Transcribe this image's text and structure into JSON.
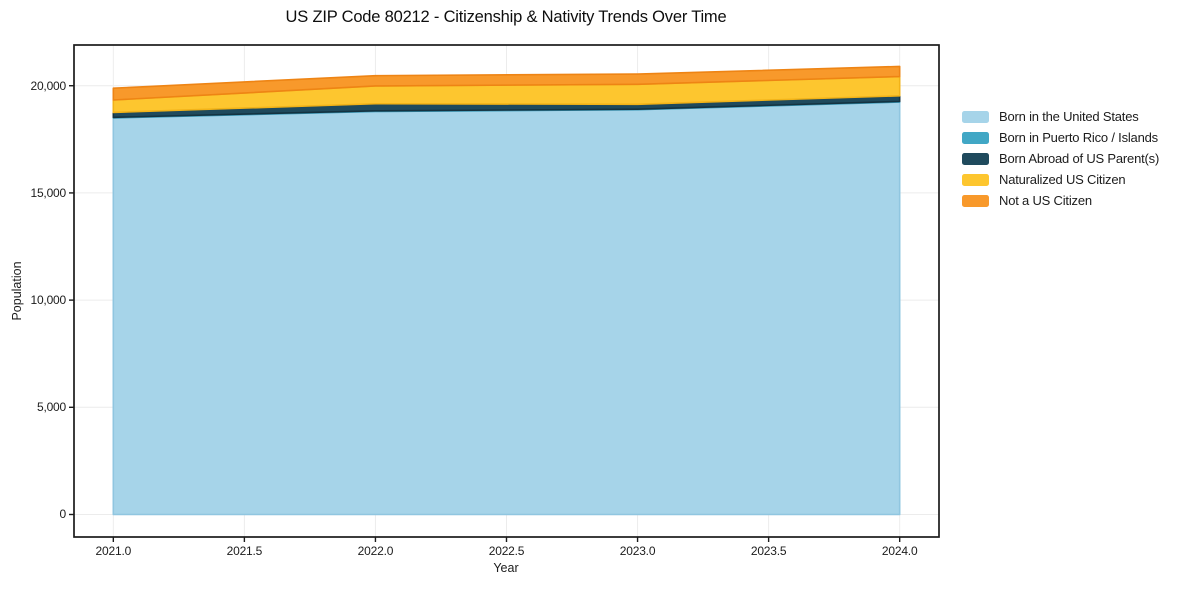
{
  "chart_data": {
    "type": "area",
    "stacked": true,
    "title": "US ZIP Code 80212 - Citizenship & Nativity Trends Over Time",
    "xlabel": "Year",
    "ylabel": "Population",
    "x": [
      2021,
      2022,
      2023,
      2024
    ],
    "series": [
      {
        "name": "Born in the United States",
        "color": "#a6d4e9",
        "edge_color": "#90c6e0",
        "values": [
          18500,
          18800,
          18880,
          19240
        ]
      },
      {
        "name": "Born in Puerto Rico / Islands",
        "color": "#41a7c5",
        "edge_color": "#3697b6",
        "values": [
          25,
          30,
          25,
          30
        ]
      },
      {
        "name": "Born Abroad of US Parent(s)",
        "color": "#1f4a5d",
        "edge_color": "#143341",
        "values": [
          230,
          330,
          230,
          260
        ]
      },
      {
        "name": "Naturalized US Citizen",
        "color": "#fdc62f",
        "edge_color": "#f2b318",
        "values": [
          580,
          830,
          930,
          900
        ]
      },
      {
        "name": "Not a US Citizen",
        "color": "#f8992b",
        "edge_color": "#ee8414",
        "values": [
          550,
          480,
          480,
          470
        ]
      }
    ],
    "xticks": [
      {
        "value": 2021.0,
        "label": "2021.0"
      },
      {
        "value": 2021.5,
        "label": "2021.5"
      },
      {
        "value": 2022.0,
        "label": "2022.0"
      },
      {
        "value": 2022.5,
        "label": "2022.5"
      },
      {
        "value": 2023.0,
        "label": "2023.0"
      },
      {
        "value": 2023.5,
        "label": "2023.5"
      },
      {
        "value": 2024.0,
        "label": "2024.0"
      }
    ],
    "yticks": [
      {
        "value": 0,
        "label": "0"
      },
      {
        "value": 5000,
        "label": "5,000"
      },
      {
        "value": 10000,
        "label": "10,000"
      },
      {
        "value": 15000,
        "label": "15,000"
      },
      {
        "value": 20000,
        "label": "20,000"
      }
    ],
    "xlim": [
      2020.85,
      2024.15
    ],
    "ylim": [
      -1050,
      21900
    ],
    "grid": true,
    "grid_color": "#ececec",
    "spine_color": "#1b1b1b",
    "plot_bg": "#ffffff",
    "legend_position": "right-outside"
  }
}
